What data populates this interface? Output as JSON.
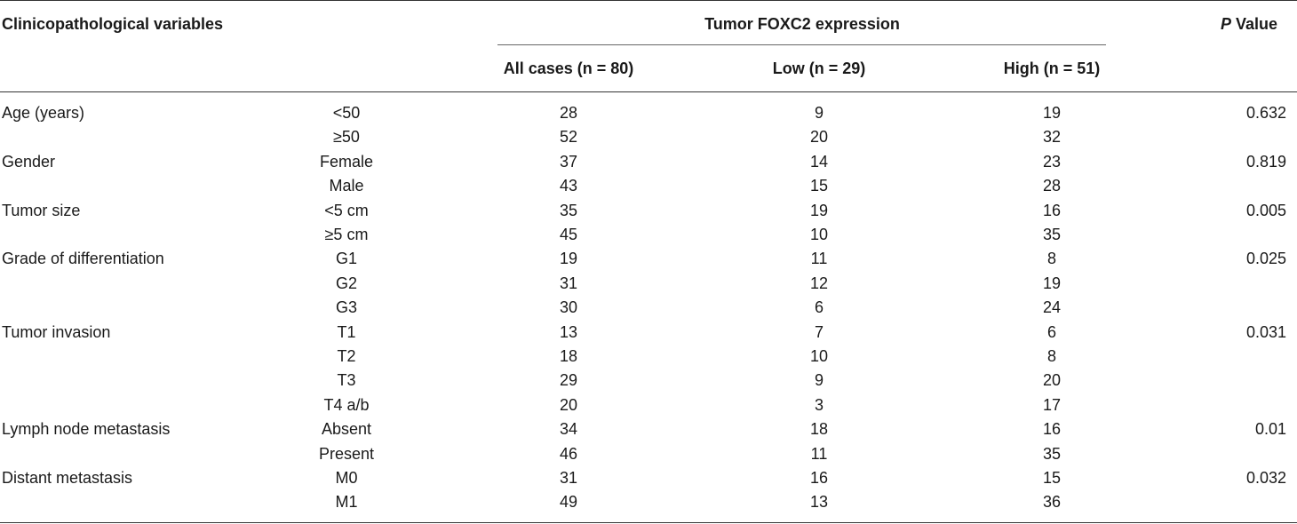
{
  "table": {
    "header": {
      "variables": "Clinicopathological variables",
      "group": "Tumor FOXC2 expression",
      "p_italic": "P",
      "p_rest": " Value",
      "all": "All cases (n = 80)",
      "low": "Low (n = 29)",
      "high": "High (n = 51)"
    },
    "rows": [
      {
        "variable": "Age (years)",
        "category": "<50",
        "all": "28",
        "low": "9",
        "high": "19",
        "p": "0.632"
      },
      {
        "variable": "",
        "category": "≥50",
        "all": "52",
        "low": "20",
        "high": "32",
        "p": ""
      },
      {
        "variable": "Gender",
        "category": "Female",
        "all": "37",
        "low": "14",
        "high": "23",
        "p": "0.819"
      },
      {
        "variable": "",
        "category": "Male",
        "all": "43",
        "low": "15",
        "high": "28",
        "p": ""
      },
      {
        "variable": "Tumor size",
        "category": "<5 cm",
        "all": "35",
        "low": "19",
        "high": "16",
        "p": "0.005"
      },
      {
        "variable": "",
        "category": "≥5 cm",
        "all": "45",
        "low": "10",
        "high": "35",
        "p": ""
      },
      {
        "variable": "Grade of differentiation",
        "category": "G1",
        "all": "19",
        "low": "11",
        "high": "8",
        "p": "0.025"
      },
      {
        "variable": "",
        "category": "G2",
        "all": "31",
        "low": "12",
        "high": "19",
        "p": ""
      },
      {
        "variable": "",
        "category": "G3",
        "all": "30",
        "low": "6",
        "high": "24",
        "p": ""
      },
      {
        "variable": "Tumor invasion",
        "category": "T1",
        "all": "13",
        "low": "7",
        "high": "6",
        "p": "0.031"
      },
      {
        "variable": "",
        "category": "T2",
        "all": "18",
        "low": "10",
        "high": "8",
        "p": ""
      },
      {
        "variable": "",
        "category": "T3",
        "all": "29",
        "low": "9",
        "high": "20",
        "p": ""
      },
      {
        "variable": "",
        "category": "T4 a/b",
        "all": "20",
        "low": "3",
        "high": "17",
        "p": ""
      },
      {
        "variable": "Lymph node metastasis",
        "category": "Absent",
        "all": "34",
        "low": "18",
        "high": "16",
        "p": "0.01"
      },
      {
        "variable": "",
        "category": "Present",
        "all": "46",
        "low": "11",
        "high": "35",
        "p": ""
      },
      {
        "variable": "Distant metastasis",
        "category": "M0",
        "all": "31",
        "low": "16",
        "high": "15",
        "p": "0.032"
      },
      {
        "variable": "",
        "category": "M1",
        "all": "49",
        "low": "13",
        "high": "36",
        "p": ""
      }
    ]
  }
}
